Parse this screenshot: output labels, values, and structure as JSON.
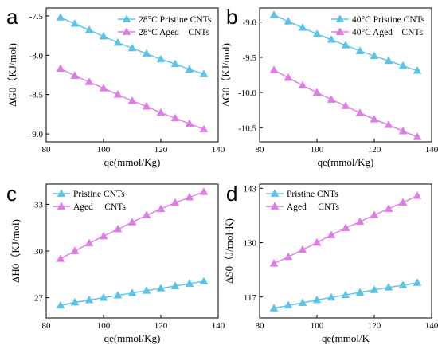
{
  "colors": {
    "pristine": "#5bc3e8",
    "aged": "#de7ce6",
    "axis": "#000000"
  },
  "chart_data": [
    {
      "type": "line",
      "panel": "a",
      "xlabel": "qe(mmol/Kg)",
      "ylabel": "ΔG0（KJ/mol)",
      "xlim": [
        80,
        140
      ],
      "ylim": [
        -9.1,
        -7.4
      ],
      "xticks": [
        "80",
        "100",
        "120",
        "140"
      ],
      "xtick_values": [
        80,
        100,
        120,
        140
      ],
      "yticks": [
        "-9.0",
        "-8.5",
        "-8.0",
        "-7.5"
      ],
      "ytick_values": [
        -9.0,
        -8.5,
        -8.0,
        -7.5
      ],
      "legend_position": "top-right",
      "grid": false,
      "x": [
        85,
        90,
        95,
        100,
        105,
        110,
        115,
        120,
        125,
        130,
        135
      ],
      "series": [
        {
          "name": "28°C Pristine CNTs",
          "color_key": "pristine",
          "marker": "triangle-up",
          "values": [
            -7.52,
            -7.6,
            -7.68,
            -7.76,
            -7.84,
            -7.91,
            -7.98,
            -8.05,
            -8.11,
            -8.18,
            -8.24
          ]
        },
        {
          "name": "28°C Aged    CNTs",
          "color_key": "aged",
          "marker": "triangle-up",
          "values": [
            -8.17,
            -8.26,
            -8.34,
            -8.42,
            -8.5,
            -8.58,
            -8.65,
            -8.73,
            -8.8,
            -8.87,
            -8.94
          ]
        }
      ]
    },
    {
      "type": "line",
      "panel": "b",
      "xlabel": "qe(mmol/Kg)",
      "ylabel": "ΔG0（KJ/mol)",
      "xlim": [
        80,
        140
      ],
      "ylim": [
        -10.7,
        -8.8
      ],
      "xticks": [
        "80",
        "100",
        "120",
        "140"
      ],
      "xtick_values": [
        80,
        100,
        120,
        140
      ],
      "yticks": [
        "-10.5",
        "-10.0",
        "-9.5",
        "-9.0"
      ],
      "ytick_values": [
        -10.5,
        -10.0,
        -9.5,
        -9.0
      ],
      "legend_position": "top-right",
      "grid": false,
      "x": [
        85,
        90,
        95,
        100,
        105,
        110,
        115,
        120,
        125,
        130,
        135
      ],
      "series": [
        {
          "name": "40°C Pristine CNTs",
          "color_key": "pristine",
          "marker": "triangle-up",
          "values": [
            -8.9,
            -8.99,
            -9.08,
            -9.17,
            -9.25,
            -9.33,
            -9.41,
            -9.48,
            -9.55,
            -9.62,
            -9.69
          ]
        },
        {
          "name": "40°C Aged    CNTs",
          "color_key": "aged",
          "marker": "triangle-up",
          "values": [
            -9.68,
            -9.79,
            -9.9,
            -10.0,
            -10.1,
            -10.19,
            -10.29,
            -10.38,
            -10.46,
            -10.55,
            -10.63
          ]
        }
      ]
    },
    {
      "type": "line",
      "panel": "c",
      "xlabel": "qe(mmol/Kg)",
      "ylabel": "ΔH0（KJ/mol)",
      "xlim": [
        80,
        140
      ],
      "ylim": [
        25.7,
        34.3
      ],
      "xticks": [
        "80",
        "100",
        "120",
        "140"
      ],
      "xtick_values": [
        80,
        100,
        120,
        140
      ],
      "yticks": [
        "27",
        "30",
        "33"
      ],
      "ytick_values": [
        27,
        30,
        33
      ],
      "legend_position": "top-left",
      "grid": false,
      "x": [
        85,
        90,
        95,
        100,
        105,
        110,
        115,
        120,
        125,
        130,
        135
      ],
      "series": [
        {
          "name": "Pristine CNTs",
          "color_key": "pristine",
          "marker": "triangle-up",
          "values": [
            26.5,
            26.7,
            26.85,
            27.0,
            27.15,
            27.3,
            27.45,
            27.6,
            27.75,
            27.9,
            28.05
          ]
        },
        {
          "name": "Aged     CNTs",
          "color_key": "aged",
          "marker": "triangle-up",
          "values": [
            29.5,
            30.0,
            30.5,
            30.95,
            31.4,
            31.85,
            32.3,
            32.7,
            33.1,
            33.45,
            33.8
          ]
        }
      ]
    },
    {
      "type": "line",
      "panel": "d",
      "xlabel": "qe(mmol/K",
      "ylabel": "ΔS0（J/mol·K)",
      "xlim": [
        80,
        140
      ],
      "ylim": [
        112,
        144
      ],
      "xticks": [
        "80",
        "100",
        "120",
        "140"
      ],
      "xtick_values": [
        80,
        100,
        120,
        140
      ],
      "yticks": [
        "117",
        "130",
        "143"
      ],
      "ytick_values": [
        117,
        130,
        143
      ],
      "legend_position": "top-left",
      "grid": false,
      "x": [
        85,
        90,
        95,
        100,
        105,
        110,
        115,
        120,
        125,
        130,
        135
      ],
      "series": [
        {
          "name": "Pristine CNTs",
          "color_key": "pristine",
          "marker": "triangle-up",
          "values": [
            114.3,
            115.0,
            115.6,
            116.3,
            116.9,
            117.5,
            118.1,
            118.7,
            119.3,
            119.8,
            120.4
          ]
        },
        {
          "name": "Aged     CNTs",
          "color_key": "aged",
          "marker": "triangle-up",
          "values": [
            125.0,
            126.6,
            128.3,
            130.0,
            131.8,
            133.5,
            135.0,
            136.6,
            138.1,
            139.6,
            141.2
          ]
        }
      ]
    }
  ]
}
